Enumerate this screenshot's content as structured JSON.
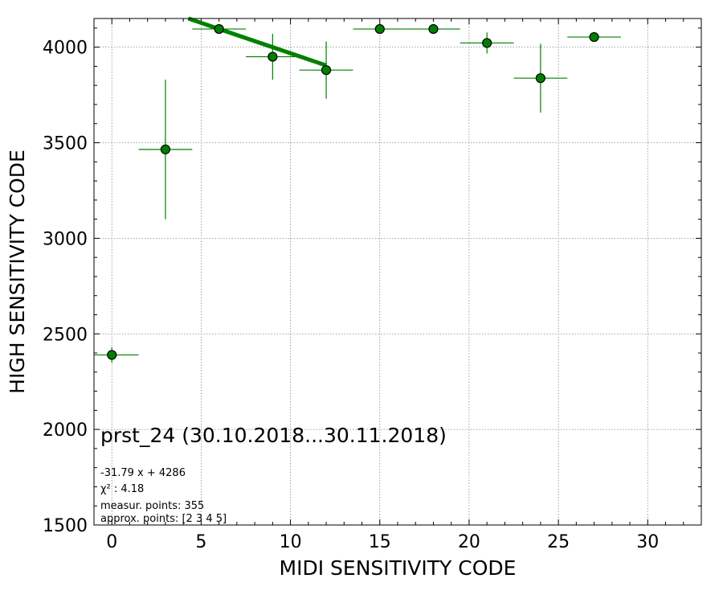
{
  "chart_data": {
    "type": "scatter",
    "title": "",
    "xlabel": "MIDI SENSITIVITY CODE",
    "ylabel": "HIGH SENSITIVITY CODE",
    "xlim": [
      -1,
      33
    ],
    "ylim": [
      1500,
      4150
    ],
    "x_ticks": [
      0,
      5,
      10,
      15,
      20,
      25,
      30
    ],
    "y_ticks": [
      1500,
      2000,
      2500,
      3000,
      3500,
      4000
    ],
    "grid": true,
    "grid_style": "dotted",
    "colors": {
      "marker": "#008000",
      "marker_edge": "#000000",
      "fit_line": "#008000",
      "errorbar": "#008000",
      "grid": "#888888"
    },
    "series": [
      {
        "points": [
          {
            "x": 0,
            "y": 2390,
            "xerr": 1.5,
            "yerr": 40
          },
          {
            "x": 3,
            "y": 3465,
            "xerr": 1.5,
            "yerr": 365
          },
          {
            "x": 6,
            "y": 4095,
            "xerr": 1.5,
            "yerr": 0
          },
          {
            "x": 9,
            "y": 3950,
            "xerr": 1.5,
            "yerr": 120
          },
          {
            "x": 12,
            "y": 3880,
            "xerr": 1.5,
            "yerr": 150
          },
          {
            "x": 15,
            "y": 4095,
            "xerr": 1.5,
            "yerr": 0
          },
          {
            "x": 18,
            "y": 4095,
            "xerr": 1.5,
            "yerr": 0
          },
          {
            "x": 21,
            "y": 4022,
            "xerr": 1.5,
            "yerr": 55
          },
          {
            "x": 24,
            "y": 3838,
            "xerr": 1.5,
            "yerr": 180
          },
          {
            "x": 27,
            "y": 4053,
            "xerr": 1.5,
            "yerr": 0
          }
        ]
      }
    ],
    "fit": {
      "slope": -31.79,
      "intercept": 4286,
      "x_range": [
        3,
        12
      ]
    },
    "annotations": {
      "label": "prst_24 (30.10.2018...30.11.2018)",
      "equation": "-31.79 x + 4286",
      "chi2_label": "χ² : 4.18",
      "measur_points": "measur. points: 355",
      "approx_points": "approx. points: [2 3 4 5]"
    }
  }
}
